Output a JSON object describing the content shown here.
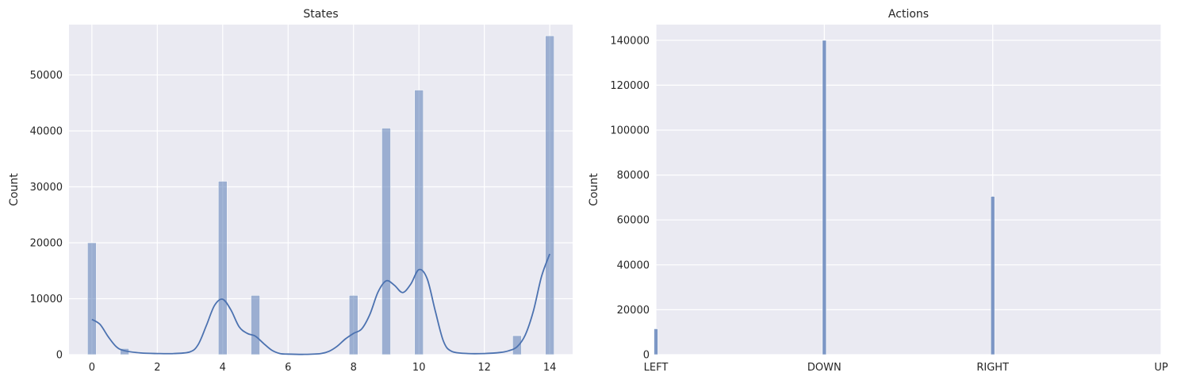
{
  "chart_data": [
    {
      "type": "bar",
      "title": "States",
      "xlabel": "",
      "ylabel": "Count",
      "xlim": [
        -0.7,
        14.7
      ],
      "ylim": [
        0,
        59000
      ],
      "xticks": [
        "0",
        "2",
        "4",
        "6",
        "8",
        "10",
        "12",
        "14"
      ],
      "yticks": [
        "0",
        "10000",
        "20000",
        "30000",
        "40000",
        "50000"
      ],
      "grid": true,
      "bar_color": "#4c72b0",
      "bars": [
        {
          "x": 0,
          "value": 20000
        },
        {
          "x": 1,
          "value": 1100
        },
        {
          "x": 4,
          "value": 31000
        },
        {
          "x": 5,
          "value": 10600
        },
        {
          "x": 8,
          "value": 10600
        },
        {
          "x": 9,
          "value": 40500
        },
        {
          "x": 10,
          "value": 47300
        },
        {
          "x": 13,
          "value": 3400
        },
        {
          "x": 14,
          "value": 57000
        }
      ],
      "kde_line": {
        "color": "#4c72b0",
        "x": [
          0,
          0.25,
          0.5,
          0.75,
          1,
          1.5,
          2,
          2.5,
          3,
          3.25,
          3.5,
          3.75,
          4,
          4.25,
          4.5,
          4.75,
          5,
          5.25,
          5.5,
          5.75,
          6,
          6.5,
          7,
          7.25,
          7.5,
          7.75,
          8,
          8.25,
          8.5,
          8.75,
          9,
          9.25,
          9.5,
          9.75,
          10,
          10.25,
          10.5,
          10.75,
          11,
          11.5,
          12,
          12.5,
          12.75,
          13,
          13.25,
          13.5,
          13.75,
          14
        ],
        "y": [
          6300,
          5400,
          3200,
          1400,
          700,
          300,
          200,
          200,
          500,
          1800,
          5200,
          8800,
          9900,
          8000,
          5000,
          3800,
          3300,
          2000,
          800,
          200,
          100,
          50,
          200,
          600,
          1500,
          2800,
          3800,
          4600,
          7200,
          11200,
          13200,
          12400,
          11100,
          12600,
          15200,
          13600,
          7800,
          2400,
          600,
          200,
          200,
          400,
          700,
          1400,
          3500,
          7800,
          14000,
          18000
        ]
      }
    },
    {
      "type": "bar",
      "title": "Actions",
      "xlabel": "",
      "ylabel": "Count",
      "categories": [
        "LEFT",
        "DOWN",
        "RIGHT",
        "UP"
      ],
      "xlim": [
        0,
        3
      ],
      "ylim": [
        0,
        147000
      ],
      "yticks": [
        "0",
        "20000",
        "40000",
        "60000",
        "80000",
        "100000",
        "120000",
        "140000"
      ],
      "grid": true,
      "bar_color": "#4c72b0",
      "bars": [
        {
          "x": 0,
          "value": 11500
        },
        {
          "x": 1,
          "value": 140000
        },
        {
          "x": 2,
          "value": 70500
        }
      ]
    }
  ]
}
